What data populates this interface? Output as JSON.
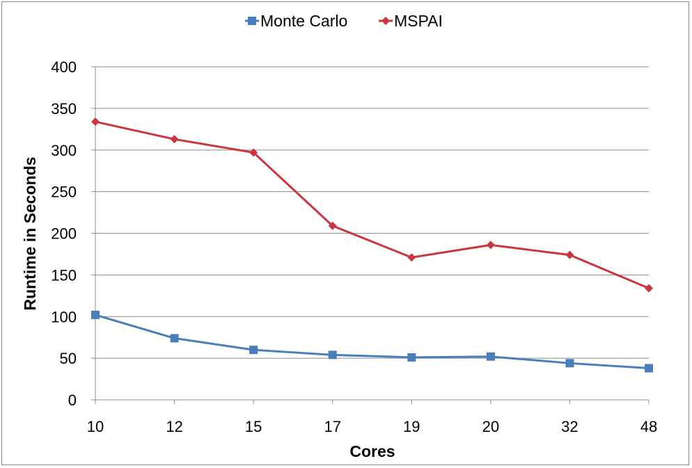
{
  "chart_data": {
    "type": "line",
    "categories": [
      "10",
      "12",
      "15",
      "17",
      "19",
      "20",
      "32",
      "48"
    ],
    "series": [
      {
        "name": "Monte Carlo",
        "values": [
          102,
          74,
          60,
          54,
          51,
          52,
          44,
          38
        ],
        "color": "#4a7ebb",
        "marker": "square"
      },
      {
        "name": "MSPAI",
        "values": [
          334,
          313,
          297,
          209,
          171,
          186,
          174,
          134
        ],
        "color": "#cc3540",
        "marker": "diamond"
      }
    ],
    "title": "",
    "xlabel": "Cores",
    "ylabel": "Runtime in Seconds",
    "ylim": [
      0,
      400
    ],
    "yticks": [
      0,
      50,
      100,
      150,
      200,
      250,
      300,
      350,
      400
    ],
    "grid": true,
    "legend_position": "top"
  }
}
